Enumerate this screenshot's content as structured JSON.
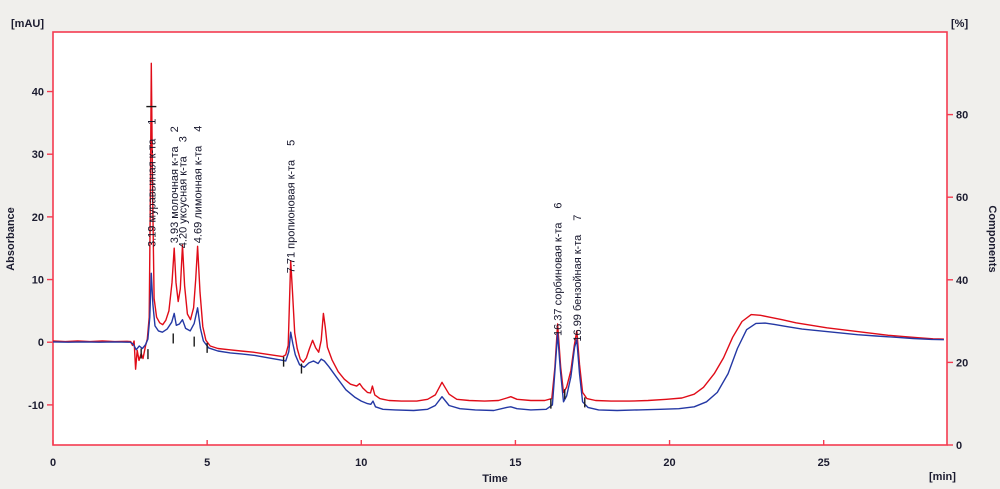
{
  "chart_data": {
    "type": "line",
    "title": "",
    "x_axis": {
      "label": "Time",
      "unit": "[min]",
      "range": [
        0,
        29
      ],
      "ticks": [
        0,
        5,
        10,
        15,
        20,
        25
      ]
    },
    "y_axis_left": {
      "label": "Absorbance",
      "unit": "[mAU]",
      "range": [
        -16.4,
        49.5
      ],
      "ticks": [
        40,
        30,
        20,
        10,
        0,
        -10
      ]
    },
    "y_axis_right": {
      "label": "Components",
      "unit": "[%]",
      "range": [
        0,
        100
      ],
      "ticks": [
        80,
        60,
        40,
        20,
        0
      ]
    },
    "colors": {
      "frame": "#f43b50",
      "trace_red": "#e00c18",
      "trace_blue": "#2438a4",
      "plot_bg": "#ffffff",
      "page_bg": "#f0efec",
      "text": "#1c1c30",
      "marker": "#1a1a1a"
    },
    "legend": [],
    "peaks": [
      {
        "num": "1",
        "rt": "3.19",
        "name": "муравьиная к-та",
        "t": 3.19,
        "height_mau": 44.5,
        "label_base_mau": 15.2
      },
      {
        "num": "2",
        "rt": "3.93",
        "name": "молочная к-та",
        "t": 3.93,
        "height_mau": 15.0,
        "label_base_mau": 15.8
      },
      {
        "num": "3",
        "rt": "4.20",
        "name": "уксусная к-та",
        "t": 4.2,
        "height_mau": 15.5,
        "label_base_mau": 15.0
      },
      {
        "num": "4",
        "rt": "4.69",
        "name": "лимонная к-та",
        "t": 4.69,
        "height_mau": 15.3,
        "label_base_mau": 15.8
      },
      {
        "num": "5",
        "rt": "7.71",
        "name": "пропионовая к-та",
        "t": 7.71,
        "height_mau": 13.0,
        "label_base_mau": 11.0
      },
      {
        "num": "6",
        "rt": "16.37",
        "name": "сорбиновая к-та",
        "t": 16.37,
        "height_mau": 2.9,
        "label_base_mau": 1.0
      },
      {
        "num": "7",
        "rt": "16.99",
        "name": "бензойная к-та",
        "t": 16.99,
        "height_mau": 1.8,
        "label_base_mau": 0.1
      }
    ],
    "integration_marks": [
      {
        "t": 2.86,
        "v": -1.8,
        "type": "v"
      },
      {
        "t": 3.08,
        "v": -1.9,
        "type": "v"
      },
      {
        "t": 3.19,
        "v": 37.6,
        "type": "h"
      },
      {
        "t": 3.9,
        "v": 0.6,
        "type": "v"
      },
      {
        "t": 4.58,
        "v": 0.1,
        "type": "v"
      },
      {
        "t": 5.0,
        "v": -0.9,
        "type": "v"
      },
      {
        "t": 7.48,
        "v": -3.1,
        "type": "v"
      },
      {
        "t": 8.06,
        "v": -4.2,
        "type": "v"
      },
      {
        "t": 16.15,
        "v": -9.8,
        "type": "v"
      },
      {
        "t": 16.6,
        "v": -8.3,
        "type": "v"
      },
      {
        "t": 17.25,
        "v": -9.6,
        "type": "v"
      }
    ],
    "series": [
      {
        "name": "red-trace",
        "color": "#e00c18",
        "points": [
          [
            0,
            0.2
          ],
          [
            0.4,
            0.1
          ],
          [
            0.8,
            0.2
          ],
          [
            1.2,
            0.1
          ],
          [
            1.6,
            0.2
          ],
          [
            2.0,
            0.1
          ],
          [
            2.4,
            0.15
          ],
          [
            2.52,
            0.1
          ],
          [
            2.58,
            -0.5
          ],
          [
            2.63,
            0.2
          ],
          [
            2.68,
            -4.3
          ],
          [
            2.73,
            -1.3
          ],
          [
            2.79,
            -2.9
          ],
          [
            2.86,
            -1.8
          ],
          [
            2.92,
            -2.6
          ],
          [
            3.0,
            -0.6
          ],
          [
            3.06,
            0.5
          ],
          [
            3.12,
            4
          ],
          [
            3.16,
            24
          ],
          [
            3.19,
            44.5
          ],
          [
            3.23,
            24
          ],
          [
            3.28,
            7
          ],
          [
            3.36,
            4
          ],
          [
            3.46,
            3.1
          ],
          [
            3.56,
            2.8
          ],
          [
            3.66,
            3.5
          ],
          [
            3.76,
            5
          ],
          [
            3.86,
            9.5
          ],
          [
            3.93,
            15
          ],
          [
            3.99,
            9.5
          ],
          [
            4.06,
            6.5
          ],
          [
            4.13,
            8.5
          ],
          [
            4.2,
            15.5
          ],
          [
            4.27,
            9
          ],
          [
            4.36,
            4.5
          ],
          [
            4.46,
            3.6
          ],
          [
            4.56,
            5.5
          ],
          [
            4.63,
            10
          ],
          [
            4.69,
            15.3
          ],
          [
            4.77,
            8
          ],
          [
            4.86,
            2.5
          ],
          [
            4.96,
            0.3
          ],
          [
            5.1,
            -0.6
          ],
          [
            5.35,
            -1
          ],
          [
            5.7,
            -1.2
          ],
          [
            6.1,
            -1.4
          ],
          [
            6.5,
            -1.6
          ],
          [
            6.9,
            -1.9
          ],
          [
            7.2,
            -2.1
          ],
          [
            7.45,
            -2.3
          ],
          [
            7.55,
            -2
          ],
          [
            7.63,
            -0.5
          ],
          [
            7.71,
            13
          ],
          [
            7.77,
            8
          ],
          [
            7.84,
            1.5
          ],
          [
            7.92,
            -1
          ],
          [
            8.02,
            -2.7
          ],
          [
            8.12,
            -3.2
          ],
          [
            8.22,
            -2.5
          ],
          [
            8.32,
            -1
          ],
          [
            8.42,
            0.3
          ],
          [
            8.52,
            -0.9
          ],
          [
            8.62,
            -1.6
          ],
          [
            8.7,
            0.3
          ],
          [
            8.77,
            4.6
          ],
          [
            8.83,
            2.5
          ],
          [
            8.9,
            -0.8
          ],
          [
            9.05,
            -2.8
          ],
          [
            9.25,
            -4.7
          ],
          [
            9.45,
            -5.9
          ],
          [
            9.65,
            -6.7
          ],
          [
            9.85,
            -7
          ],
          [
            9.95,
            -6.6
          ],
          [
            10.05,
            -7.3
          ],
          [
            10.2,
            -8
          ],
          [
            10.3,
            -8.1
          ],
          [
            10.36,
            -7
          ],
          [
            10.44,
            -8.4
          ],
          [
            10.6,
            -9
          ],
          [
            10.9,
            -9.3
          ],
          [
            11.3,
            -9.4
          ],
          [
            11.8,
            -9.4
          ],
          [
            12.15,
            -9.1
          ],
          [
            12.4,
            -8.4
          ],
          [
            12.62,
            -6.4
          ],
          [
            12.85,
            -8.3
          ],
          [
            13.1,
            -9.1
          ],
          [
            13.5,
            -9.3
          ],
          [
            14,
            -9.4
          ],
          [
            14.45,
            -9.3
          ],
          [
            14.72,
            -8.9
          ],
          [
            14.85,
            -8.7
          ],
          [
            15.05,
            -9.1
          ],
          [
            15.5,
            -9.3
          ],
          [
            15.95,
            -9.3
          ],
          [
            16.18,
            -9
          ],
          [
            16.28,
            -4
          ],
          [
            16.37,
            2.9
          ],
          [
            16.47,
            -4
          ],
          [
            16.56,
            -8
          ],
          [
            16.66,
            -7.2
          ],
          [
            16.8,
            -4.5
          ],
          [
            16.91,
            -0.5
          ],
          [
            16.99,
            1.8
          ],
          [
            17.08,
            -3.5
          ],
          [
            17.18,
            -8
          ],
          [
            17.32,
            -9
          ],
          [
            17.6,
            -9.3
          ],
          [
            18.1,
            -9.4
          ],
          [
            18.7,
            -9.4
          ],
          [
            19.3,
            -9.3
          ],
          [
            19.9,
            -9.1
          ],
          [
            20.4,
            -8.9
          ],
          [
            20.8,
            -8.3
          ],
          [
            21.1,
            -7.2
          ],
          [
            21.45,
            -5
          ],
          [
            21.75,
            -2.5
          ],
          [
            22.05,
            0.8
          ],
          [
            22.35,
            3.3
          ],
          [
            22.65,
            4.4
          ],
          [
            22.95,
            4.3
          ],
          [
            23.25,
            4
          ],
          [
            23.65,
            3.6
          ],
          [
            24.1,
            3.1
          ],
          [
            24.6,
            2.7
          ],
          [
            25.1,
            2.3
          ],
          [
            25.6,
            2
          ],
          [
            26.1,
            1.7
          ],
          [
            26.6,
            1.4
          ],
          [
            27.1,
            1.1
          ],
          [
            27.6,
            0.9
          ],
          [
            28.1,
            0.7
          ],
          [
            28.55,
            0.55
          ],
          [
            28.9,
            0.5
          ]
        ]
      },
      {
        "name": "blue-trace",
        "color": "#2438a4",
        "points": [
          [
            0,
            0.05
          ],
          [
            0.5,
            0
          ],
          [
            1,
            0.05
          ],
          [
            1.5,
            0
          ],
          [
            2,
            0.05
          ],
          [
            2.5,
            0
          ],
          [
            2.6,
            -0.3
          ],
          [
            2.7,
            -1.2
          ],
          [
            2.8,
            -0.6
          ],
          [
            2.9,
            -1
          ],
          [
            3.0,
            -0.4
          ],
          [
            3.08,
            0.5
          ],
          [
            3.14,
            4
          ],
          [
            3.19,
            11
          ],
          [
            3.24,
            6
          ],
          [
            3.31,
            2.6
          ],
          [
            3.42,
            1.8
          ],
          [
            3.55,
            1.6
          ],
          [
            3.7,
            2.1
          ],
          [
            3.85,
            3.2
          ],
          [
            3.93,
            4.6
          ],
          [
            4.0,
            2.7
          ],
          [
            4.1,
            2.9
          ],
          [
            4.2,
            3.6
          ],
          [
            4.3,
            2.2
          ],
          [
            4.45,
            1.8
          ],
          [
            4.58,
            3
          ],
          [
            4.69,
            5.5
          ],
          [
            4.78,
            2.2
          ],
          [
            4.88,
            0.2
          ],
          [
            5.05,
            -0.9
          ],
          [
            5.35,
            -1.4
          ],
          [
            5.75,
            -1.7
          ],
          [
            6.15,
            -1.9
          ],
          [
            6.55,
            -2.1
          ],
          [
            7.0,
            -2.5
          ],
          [
            7.35,
            -2.8
          ],
          [
            7.55,
            -3
          ],
          [
            7.65,
            -1.5
          ],
          [
            7.71,
            1.6
          ],
          [
            7.78,
            -0.2
          ],
          [
            7.86,
            -2
          ],
          [
            8.0,
            -3.6
          ],
          [
            8.15,
            -4
          ],
          [
            8.3,
            -3.3
          ],
          [
            8.45,
            -3
          ],
          [
            8.6,
            -3.4
          ],
          [
            8.7,
            -2.7
          ],
          [
            8.8,
            -3
          ],
          [
            8.95,
            -3.9
          ],
          [
            9.2,
            -5.6
          ],
          [
            9.5,
            -7.6
          ],
          [
            9.8,
            -8.8
          ],
          [
            10.0,
            -9.4
          ],
          [
            10.2,
            -9.8
          ],
          [
            10.31,
            -9.9
          ],
          [
            10.38,
            -9.4
          ],
          [
            10.46,
            -10.3
          ],
          [
            10.7,
            -10.7
          ],
          [
            11.1,
            -10.8
          ],
          [
            11.7,
            -10.9
          ],
          [
            12.15,
            -10.7
          ],
          [
            12.4,
            -10.1
          ],
          [
            12.62,
            -8.7
          ],
          [
            12.85,
            -10.1
          ],
          [
            13.2,
            -10.6
          ],
          [
            13.7,
            -10.8
          ],
          [
            14.3,
            -10.9
          ],
          [
            14.72,
            -10.4
          ],
          [
            14.85,
            -10.3
          ],
          [
            15.05,
            -10.6
          ],
          [
            15.5,
            -10.8
          ],
          [
            16.0,
            -10.7
          ],
          [
            16.2,
            -10
          ],
          [
            16.29,
            -4
          ],
          [
            16.37,
            1.4
          ],
          [
            16.46,
            -4.5
          ],
          [
            16.56,
            -9.5
          ],
          [
            16.66,
            -8.6
          ],
          [
            16.8,
            -5.5
          ],
          [
            16.92,
            -0.8
          ],
          [
            16.99,
            0.4
          ],
          [
            17.08,
            -5
          ],
          [
            17.18,
            -9.5
          ],
          [
            17.35,
            -10.4
          ],
          [
            17.7,
            -10.8
          ],
          [
            18.3,
            -10.9
          ],
          [
            19.0,
            -10.8
          ],
          [
            19.7,
            -10.7
          ],
          [
            20.3,
            -10.6
          ],
          [
            20.8,
            -10.3
          ],
          [
            21.2,
            -9.5
          ],
          [
            21.55,
            -8
          ],
          [
            21.9,
            -5
          ],
          [
            22.2,
            -1
          ],
          [
            22.5,
            2
          ],
          [
            22.8,
            3
          ],
          [
            23.1,
            3.05
          ],
          [
            23.4,
            2.85
          ],
          [
            23.8,
            2.5
          ],
          [
            24.3,
            2.1
          ],
          [
            24.9,
            1.8
          ],
          [
            25.5,
            1.5
          ],
          [
            26.1,
            1.2
          ],
          [
            26.7,
            1
          ],
          [
            27.3,
            0.8
          ],
          [
            27.9,
            0.6
          ],
          [
            28.5,
            0.45
          ],
          [
            28.9,
            0.4
          ]
        ]
      }
    ]
  }
}
